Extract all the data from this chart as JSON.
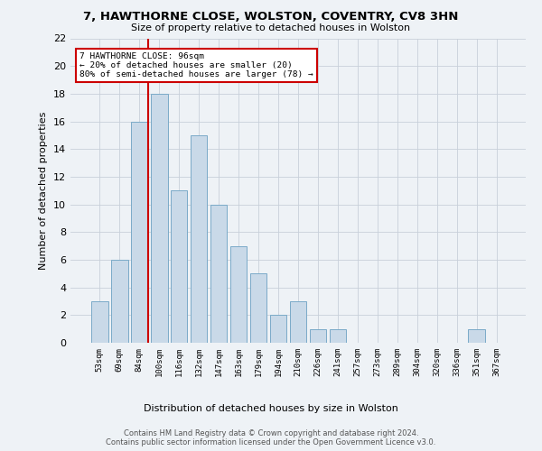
{
  "title1": "7, HAWTHORNE CLOSE, WOLSTON, COVENTRY, CV8 3HN",
  "title2": "Size of property relative to detached houses in Wolston",
  "xlabel": "Distribution of detached houses by size in Wolston",
  "ylabel": "Number of detached properties",
  "bin_labels": [
    "53sqm",
    "69sqm",
    "84sqm",
    "100sqm",
    "116sqm",
    "132sqm",
    "147sqm",
    "163sqm",
    "179sqm",
    "194sqm",
    "210sqm",
    "226sqm",
    "241sqm",
    "257sqm",
    "273sqm",
    "289sqm",
    "304sqm",
    "320sqm",
    "336sqm",
    "351sqm",
    "367sqm"
  ],
  "bar_heights": [
    3,
    6,
    16,
    18,
    11,
    15,
    10,
    7,
    5,
    2,
    3,
    1,
    1,
    0,
    0,
    0,
    0,
    0,
    0,
    1,
    0
  ],
  "bar_color": "#c9d9e8",
  "bar_edge_color": "#7aaac8",
  "annotation_line1": "7 HAWTHORNE CLOSE: 96sqm",
  "annotation_line2": "← 20% of detached houses are smaller (20)",
  "annotation_line3": "80% of semi-detached houses are larger (78) →",
  "annotation_box_color": "#ffffff",
  "annotation_box_edge": "#cc0000",
  "vline_color": "#cc0000",
  "ylim": [
    0,
    22
  ],
  "yticks": [
    0,
    2,
    4,
    6,
    8,
    10,
    12,
    14,
    16,
    18,
    20,
    22
  ],
  "footer1": "Contains HM Land Registry data © Crown copyright and database right 2024.",
  "footer2": "Contains public sector information licensed under the Open Government Licence v3.0.",
  "bg_color": "#eef2f6",
  "grid_color": "#c8d0da"
}
